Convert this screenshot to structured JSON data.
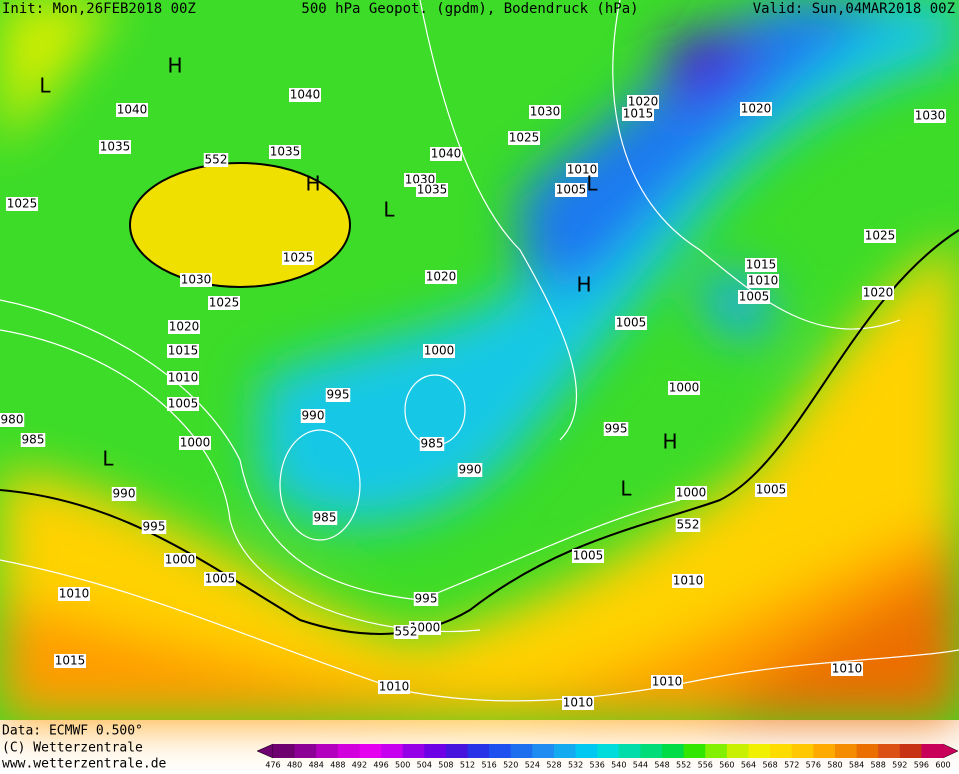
{
  "header": {
    "init": "Init: Mon,26FEB2018 00Z",
    "title": "500 hPa Geopot. (gpdm), Bodendruck (hPa)",
    "valid": "Valid: Sun,04MAR2018 00Z"
  },
  "isobar_labels": [
    "1040",
    "1040",
    "1035",
    "1035",
    "1025",
    "1030",
    "1025",
    "1025",
    "1020",
    "1015",
    "1010",
    "1005",
    "1000",
    "985",
    "980",
    "990",
    "995",
    "1000",
    "1005",
    "1010",
    "1015",
    "1010",
    "1010",
    "1010",
    "1010",
    "1010",
    "1005",
    "995",
    "1000",
    "990",
    "985",
    "985",
    "990",
    "995",
    "1000",
    "1020",
    "1030",
    "1035",
    "1040",
    "1030",
    "1025",
    "1020",
    "1015",
    "1010",
    "1005",
    "1020",
    "1030",
    "1025",
    "1020",
    "1015",
    "1010",
    "1005",
    "1005",
    "1000",
    "995",
    "1000",
    "1005"
  ],
  "pressure_centers": [
    "H",
    "L",
    "H",
    "L",
    "L",
    "H",
    "L",
    "H",
    "L"
  ],
  "contour_labels": [
    "552",
    "552",
    "552"
  ],
  "footer": {
    "data": "Data: ECMWF  0.500°",
    "copyright": "(C) Wetterzentrale",
    "url": "www.wetterzentrale.de"
  },
  "legend": {
    "ticks": [
      476,
      480,
      484,
      488,
      492,
      496,
      500,
      504,
      508,
      512,
      516,
      520,
      524,
      528,
      532,
      536,
      540,
      544,
      548,
      552,
      556,
      560,
      564,
      568,
      572,
      576,
      580,
      584,
      588,
      592,
      596,
      600
    ],
    "colors": [
      "#6e0070",
      "#8c0096",
      "#b400be",
      "#d200dc",
      "#e600f0",
      "#c800f0",
      "#9600e6",
      "#6e00e6",
      "#4614dc",
      "#2832e6",
      "#1e50f0",
      "#1e6ef0",
      "#1e8cf0",
      "#14aaf0",
      "#00c8f0",
      "#00dcdc",
      "#00dcaa",
      "#00dc78",
      "#00dc46",
      "#32e600",
      "#82f000",
      "#c8f000",
      "#f0f000",
      "#ffdc00",
      "#ffc800",
      "#ffaa00",
      "#f58c00",
      "#eb6e00",
      "#dc5014",
      "#c83214",
      "#c8005a"
    ]
  }
}
